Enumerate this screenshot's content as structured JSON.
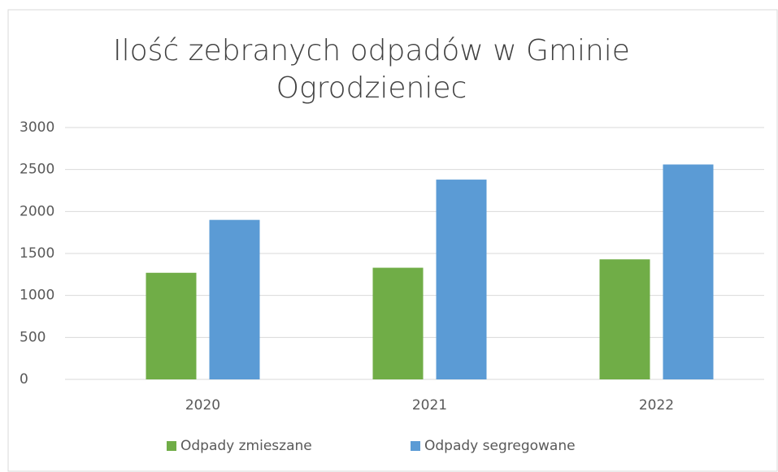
{
  "chart_data": {
    "type": "bar",
    "title": "Ilość zebranych odpadów w Gminie Ogrodzieniec",
    "categories": [
      "2020",
      "2021",
      "2022"
    ],
    "series": [
      {
        "name": "Odpady zmieszane",
        "color": "#70ad47",
        "values": [
          1270,
          1330,
          1430
        ]
      },
      {
        "name": "Odpady segregowane",
        "color": "#5b9bd5",
        "values": [
          1900,
          2380,
          2560
        ]
      }
    ],
    "ylim": [
      0,
      3000
    ],
    "yticks": [
      0,
      500,
      1000,
      1500,
      2000,
      2500,
      3000
    ],
    "grid": true,
    "legend": "bottom"
  }
}
